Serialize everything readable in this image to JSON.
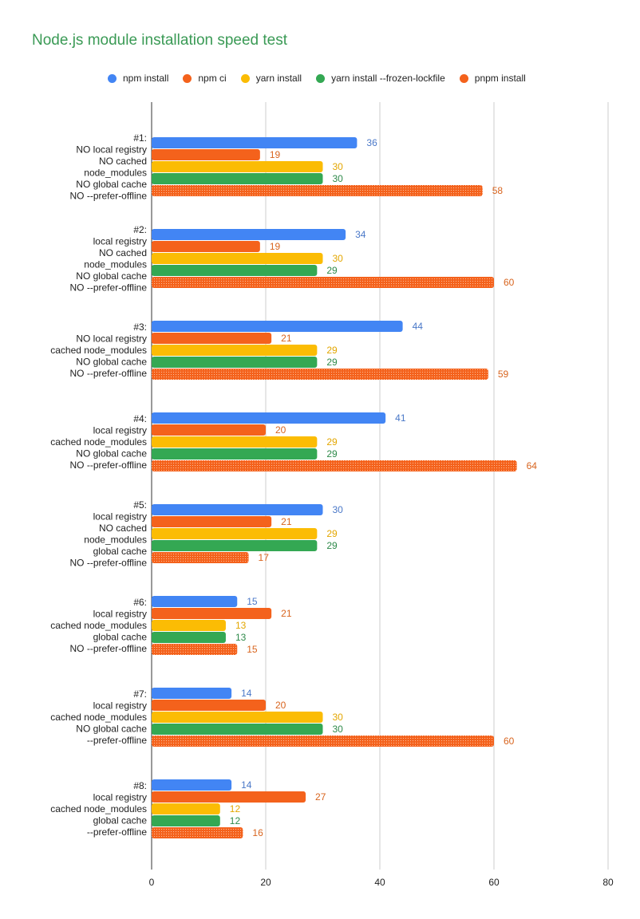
{
  "chart_data": {
    "type": "bar",
    "orientation": "horizontal",
    "title": "Node.js module installation speed test",
    "legend_position": "top",
    "xlim": [
      0,
      80
    ],
    "x_ticks": [
      0,
      20,
      40,
      60,
      80
    ],
    "grid": true,
    "categories": [
      [
        "#1:",
        "NO local registry",
        "NO cached",
        "node_modules",
        "NO global cache",
        "NO --prefer-offline"
      ],
      [
        "#2:",
        "local registry",
        "NO cached",
        "node_modules",
        "NO global cache",
        "NO --prefer-offline"
      ],
      [
        "#3:",
        "NO local registry",
        "cached node_modules",
        "NO global cache",
        "NO --prefer-offline"
      ],
      [
        "#4:",
        "local registry",
        "cached node_modules",
        "NO global cache",
        "NO --prefer-offline"
      ],
      [
        "#5:",
        "local registry",
        "NO cached",
        "node_modules",
        "global cache",
        "NO --prefer-offline"
      ],
      [
        "#6:",
        "local registry",
        "cached node_modules",
        "global cache",
        "NO --prefer-offline"
      ],
      [
        "#7:",
        "local registry",
        "cached node_modules",
        "NO global cache",
        "--prefer-offline"
      ],
      [
        "#8:",
        "local registry",
        "cached node_modules",
        "global cache",
        "--prefer-offline"
      ]
    ],
    "series": [
      {
        "name": "npm install",
        "color": "#4285f4",
        "label_color": "#4a78c8",
        "values": [
          36,
          34,
          44,
          41,
          30,
          15,
          14,
          14
        ]
      },
      {
        "name": "npm ci",
        "color": "#f4621c",
        "label_color": "#d8641e",
        "values": [
          19,
          19,
          21,
          20,
          21,
          21,
          20,
          27
        ]
      },
      {
        "name": "yarn install",
        "color": "#fbbc04",
        "label_color": "#e3a600",
        "values": [
          30,
          30,
          29,
          29,
          29,
          13,
          30,
          12
        ]
      },
      {
        "name": "yarn install --frozen-lockfile",
        "color": "#34a853",
        "label_color": "#2e8a4a",
        "values": [
          30,
          29,
          29,
          29,
          29,
          13,
          30,
          12
        ]
      },
      {
        "name": "pnpm install",
        "color": "#f4621c",
        "label_color": "#d8641e",
        "pattern": "dotted",
        "values": [
          58,
          60,
          59,
          64,
          17,
          15,
          60,
          16
        ]
      }
    ]
  }
}
